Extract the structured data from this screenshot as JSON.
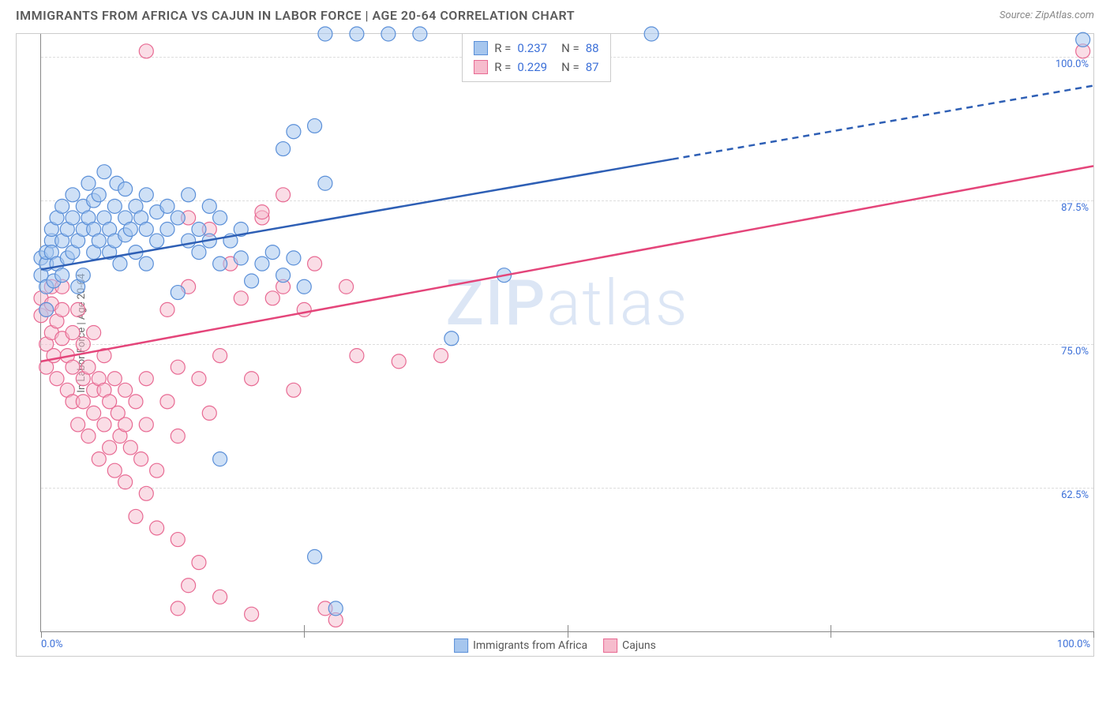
{
  "header": {
    "title": "IMMIGRANTS FROM AFRICA VS CAJUN IN LABOR FORCE | AGE 20-64 CORRELATION CHART",
    "source": "Source: ZipAtlas.com"
  },
  "chart": {
    "type": "scatter",
    "y_axis_label": "In Labor Force | Age 20-64",
    "watermark": "ZIPatlas",
    "background_color": "#ffffff",
    "border_color": "#cccccc",
    "axis_color": "#888888",
    "grid_color": "#dddddd",
    "tick_label_color": "#3b6fd8",
    "xlim": [
      0,
      100
    ],
    "ylim": [
      50,
      102
    ],
    "x_ticks_major": [
      0,
      25,
      50,
      75,
      100
    ],
    "x_tick_labels": [
      {
        "pos": 0,
        "label": "0.0%"
      },
      {
        "pos": 100,
        "label": "100.0%"
      }
    ],
    "y_tick_labels": [
      {
        "pos": 62.5,
        "label": "62.5%"
      },
      {
        "pos": 75.0,
        "label": "75.0%"
      },
      {
        "pos": 87.5,
        "label": "87.5%"
      },
      {
        "pos": 100.0,
        "label": "100.0%"
      }
    ],
    "y_gridlines": [
      62.5,
      75.0,
      87.5,
      100.0
    ],
    "stats": [
      {
        "series": "blue",
        "R": "0.237",
        "N": "88"
      },
      {
        "series": "pink",
        "R": "0.229",
        "N": "87"
      }
    ],
    "legend": [
      {
        "series": "blue",
        "label": "Immigrants from Africa"
      },
      {
        "series": "pink",
        "label": "Cajuns"
      }
    ],
    "series_style": {
      "blue": {
        "fill": "#a6c6ee",
        "stroke": "#5a8fd8",
        "line": "#2e5fb5",
        "swatch_fill": "#a6c6ee",
        "swatch_stroke": "#5a8fd8",
        "marker_radius": 9,
        "marker_opacity": 0.55,
        "trend": {
          "x1": 0,
          "y1": 81.5,
          "x2": 100,
          "y2": 97.5,
          "solid_until_x": 60
        }
      },
      "pink": {
        "fill": "#f6bccd",
        "stroke": "#e86a93",
        "line": "#e4457a",
        "swatch_fill": "#f6bccd",
        "swatch_stroke": "#e86a93",
        "marker_radius": 9,
        "marker_opacity": 0.5,
        "trend": {
          "x1": 0,
          "y1": 73.5,
          "x2": 100,
          "y2": 90.5,
          "solid_until_x": 100
        }
      }
    },
    "points": {
      "blue": [
        [
          0,
          81
        ],
        [
          0,
          82.5
        ],
        [
          0.5,
          82
        ],
        [
          0.5,
          80
        ],
        [
          0.5,
          78
        ],
        [
          0.5,
          83
        ],
        [
          1,
          84
        ],
        [
          1,
          85
        ],
        [
          1,
          83
        ],
        [
          1.2,
          80.5
        ],
        [
          1.5,
          86
        ],
        [
          1.5,
          82
        ],
        [
          2,
          81
        ],
        [
          2,
          84
        ],
        [
          2,
          87
        ],
        [
          2.5,
          85
        ],
        [
          2.5,
          82.5
        ],
        [
          3,
          83
        ],
        [
          3,
          86
        ],
        [
          3,
          88
        ],
        [
          3.5,
          84
        ],
        [
          3.5,
          80
        ],
        [
          4,
          85
        ],
        [
          4,
          87
        ],
        [
          4,
          81
        ],
        [
          4.5,
          86
        ],
        [
          4.5,
          89
        ],
        [
          5,
          85
        ],
        [
          5,
          83
        ],
        [
          5,
          87.5
        ],
        [
          5.5,
          88
        ],
        [
          5.5,
          84
        ],
        [
          6,
          86
        ],
        [
          6,
          90
        ],
        [
          6.5,
          83
        ],
        [
          6.5,
          85
        ],
        [
          7,
          87
        ],
        [
          7,
          84
        ],
        [
          7.2,
          89
        ],
        [
          7.5,
          82
        ],
        [
          8,
          86
        ],
        [
          8,
          88.5
        ],
        [
          8,
          84.5
        ],
        [
          8.5,
          85
        ],
        [
          9,
          87
        ],
        [
          9,
          83
        ],
        [
          9.5,
          86
        ],
        [
          10,
          85
        ],
        [
          10,
          88
        ],
        [
          10,
          82
        ],
        [
          11,
          84
        ],
        [
          11,
          86.5
        ],
        [
          12,
          85
        ],
        [
          12,
          87
        ],
        [
          13,
          79.5
        ],
        [
          13,
          86
        ],
        [
          14,
          84
        ],
        [
          14,
          88
        ],
        [
          15,
          85
        ],
        [
          15,
          83
        ],
        [
          16,
          84
        ],
        [
          16,
          87
        ],
        [
          17,
          82
        ],
        [
          17,
          86
        ],
        [
          18,
          84
        ],
        [
          19,
          82.5
        ],
        [
          19,
          85
        ],
        [
          20,
          80.5
        ],
        [
          21,
          82
        ],
        [
          22,
          83
        ],
        [
          23,
          81
        ],
        [
          24,
          82.5
        ],
        [
          25,
          80
        ],
        [
          17,
          65
        ],
        [
          23,
          92
        ],
        [
          24,
          93.5
        ],
        [
          26,
          94
        ],
        [
          27,
          89
        ],
        [
          27,
          102
        ],
        [
          30,
          102
        ],
        [
          33,
          102
        ],
        [
          36,
          102
        ],
        [
          26,
          56.5
        ],
        [
          28,
          52
        ],
        [
          39,
          75.5
        ],
        [
          44,
          81
        ],
        [
          58,
          102
        ],
        [
          99,
          101.5
        ]
      ],
      "pink": [
        [
          0,
          77.5
        ],
        [
          0,
          79
        ],
        [
          0.5,
          78
        ],
        [
          0.5,
          75
        ],
        [
          0.5,
          73
        ],
        [
          1,
          78.5
        ],
        [
          1,
          76
        ],
        [
          1,
          80
        ],
        [
          1.2,
          74
        ],
        [
          1.5,
          77
        ],
        [
          1.5,
          72
        ],
        [
          2,
          75.5
        ],
        [
          2,
          78
        ],
        [
          2,
          80
        ],
        [
          2.5,
          71
        ],
        [
          2.5,
          74
        ],
        [
          3,
          73
        ],
        [
          3,
          76
        ],
        [
          3,
          70
        ],
        [
          3.5,
          78
        ],
        [
          3.5,
          68
        ],
        [
          4,
          72
        ],
        [
          4,
          75
        ],
        [
          4,
          70
        ],
        [
          4.5,
          67
        ],
        [
          4.5,
          73
        ],
        [
          5,
          71
        ],
        [
          5,
          69
        ],
        [
          5,
          76
        ],
        [
          5.5,
          65
        ],
        [
          5.5,
          72
        ],
        [
          6,
          68
        ],
        [
          6,
          74
        ],
        [
          6,
          71
        ],
        [
          6.5,
          66
        ],
        [
          6.5,
          70
        ],
        [
          7,
          72
        ],
        [
          7,
          64
        ],
        [
          7.3,
          69
        ],
        [
          7.5,
          67
        ],
        [
          8,
          71
        ],
        [
          8,
          63
        ],
        [
          8,
          68
        ],
        [
          8.5,
          66
        ],
        [
          9,
          70
        ],
        [
          9,
          60
        ],
        [
          9.5,
          65
        ],
        [
          10,
          62
        ],
        [
          10,
          68
        ],
        [
          10,
          72
        ],
        [
          11,
          64
        ],
        [
          11,
          59
        ],
        [
          12,
          70
        ],
        [
          12,
          78
        ],
        [
          13,
          67
        ],
        [
          13,
          73
        ],
        [
          14,
          80
        ],
        [
          14,
          86
        ],
        [
          15,
          72
        ],
        [
          16,
          85
        ],
        [
          16,
          69
        ],
        [
          17,
          74
        ],
        [
          18,
          82
        ],
        [
          19,
          79
        ],
        [
          20,
          72
        ],
        [
          21,
          86
        ],
        [
          22,
          79
        ],
        [
          23,
          80
        ],
        [
          24,
          71
        ],
        [
          25,
          78
        ],
        [
          26,
          82
        ],
        [
          10,
          100.5
        ],
        [
          13,
          52
        ],
        [
          13,
          58
        ],
        [
          14,
          54
        ],
        [
          15,
          56
        ],
        [
          17,
          53
        ],
        [
          20,
          51.5
        ],
        [
          21,
          86.5
        ],
        [
          23,
          88
        ],
        [
          28,
          51
        ],
        [
          30,
          74
        ],
        [
          34,
          73.5
        ],
        [
          38,
          74
        ],
        [
          27,
          52
        ],
        [
          29,
          80
        ],
        [
          99,
          100.5
        ]
      ]
    }
  }
}
